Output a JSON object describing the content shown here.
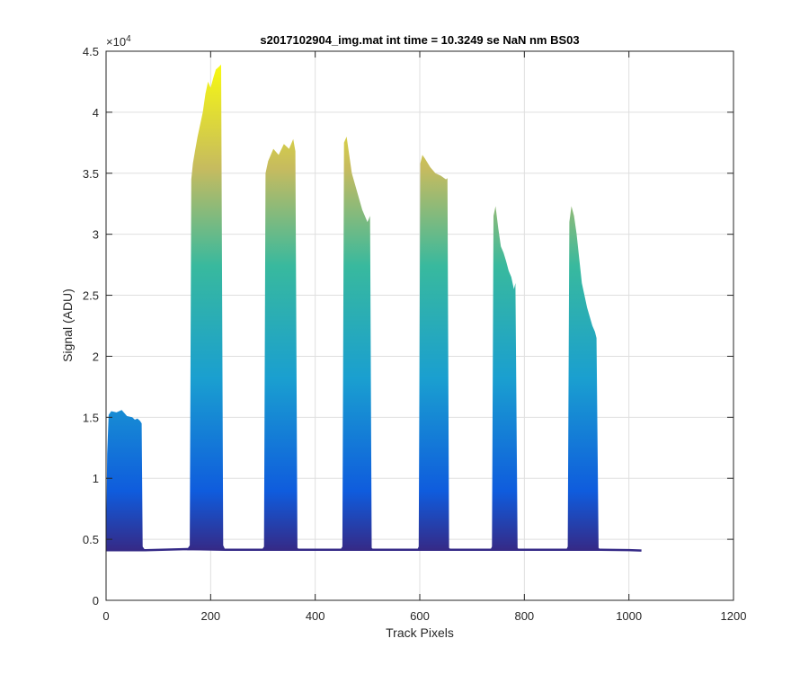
{
  "chart_data": {
    "type": "area",
    "title": "s2017102904_img.mat int time = 10.3249 se  NaN nm BS03",
    "xlabel": "Track Pixels",
    "ylabel": "Signal (ADU)",
    "xlim": [
      0,
      1200
    ],
    "ylim": [
      0,
      45000
    ],
    "xticks": [
      0,
      200,
      400,
      600,
      800,
      1000,
      1200
    ],
    "yticks": [
      0,
      5000,
      10000,
      15000,
      20000,
      25000,
      30000,
      35000,
      40000,
      45000
    ],
    "ytick_labels": [
      "0",
      "0.5",
      "1",
      "1.5",
      "2",
      "2.5",
      "3",
      "3.5",
      "4",
      "4.5"
    ],
    "y_exponent_label": "×10",
    "y_exponent_power": "4",
    "grid": true,
    "baseline": 4100,
    "colors": {
      "low": "#352a87",
      "mid_low": "#0f5cdd",
      "mid": "#1a9fd0",
      "mid_high": "#38b99e",
      "high": "#c6bb5f",
      "top": "#f9fb0e"
    },
    "series": [
      {
        "x": [
          0,
          2,
          5,
          10,
          20,
          30,
          40,
          50,
          55,
          60,
          65,
          68,
          70,
          75
        ],
        "y": [
          4100,
          12000,
          15200,
          15500,
          15400,
          15600,
          15100,
          15000,
          14800,
          14900,
          14700,
          14500,
          4400,
          4100
        ]
      },
      {
        "x": [
          155,
          160,
          163,
          166,
          170,
          175,
          180,
          185,
          190,
          195,
          200,
          205,
          210,
          215,
          220,
          224,
          228
        ],
        "y": [
          4200,
          4500,
          34500,
          35800,
          36800,
          38000,
          39000,
          40000,
          41500,
          42500,
          42000,
          42800,
          43500,
          43700,
          43900,
          4500,
          4150
        ]
      },
      {
        "x": [
          298,
          302,
          305,
          310,
          320,
          330,
          340,
          350,
          358,
          362,
          366,
          370
        ],
        "y": [
          4150,
          4400,
          35000,
          36000,
          37000,
          36500,
          37400,
          37000,
          37800,
          36800,
          4300,
          4150
        ]
      },
      {
        "x": [
          448,
          452,
          455,
          460,
          465,
          470,
          480,
          490,
          500,
          505,
          508,
          512
        ],
        "y": [
          4150,
          4400,
          37500,
          38000,
          36500,
          35000,
          33500,
          32000,
          31000,
          31500,
          4300,
          4150
        ]
      },
      {
        "x": [
          595,
          598,
          601,
          605,
          610,
          620,
          630,
          640,
          650,
          653,
          656,
          660
        ],
        "y": [
          4150,
          4400,
          35800,
          36500,
          36200,
          35500,
          35000,
          34800,
          34500,
          34600,
          4300,
          4150
        ]
      },
      {
        "x": [
          735,
          738,
          741,
          745,
          750,
          755,
          760,
          765,
          770,
          775,
          780,
          783,
          787,
          790
        ],
        "y": [
          4150,
          4400,
          31500,
          32300,
          30500,
          29000,
          28500,
          27800,
          27000,
          26500,
          25500,
          26000,
          4300,
          4150
        ]
      },
      {
        "x": [
          880,
          883,
          886,
          890,
          895,
          900,
          910,
          920,
          930,
          935,
          938,
          942,
          946
        ],
        "y": [
          4150,
          4400,
          31000,
          32300,
          31500,
          30000,
          26000,
          24000,
          22500,
          22000,
          21500,
          4300,
          4150
        ]
      }
    ],
    "trailing_baseline": {
      "x": [
        946,
        1000,
        1024
      ],
      "y": [
        4150,
        4120,
        4080
      ]
    }
  }
}
